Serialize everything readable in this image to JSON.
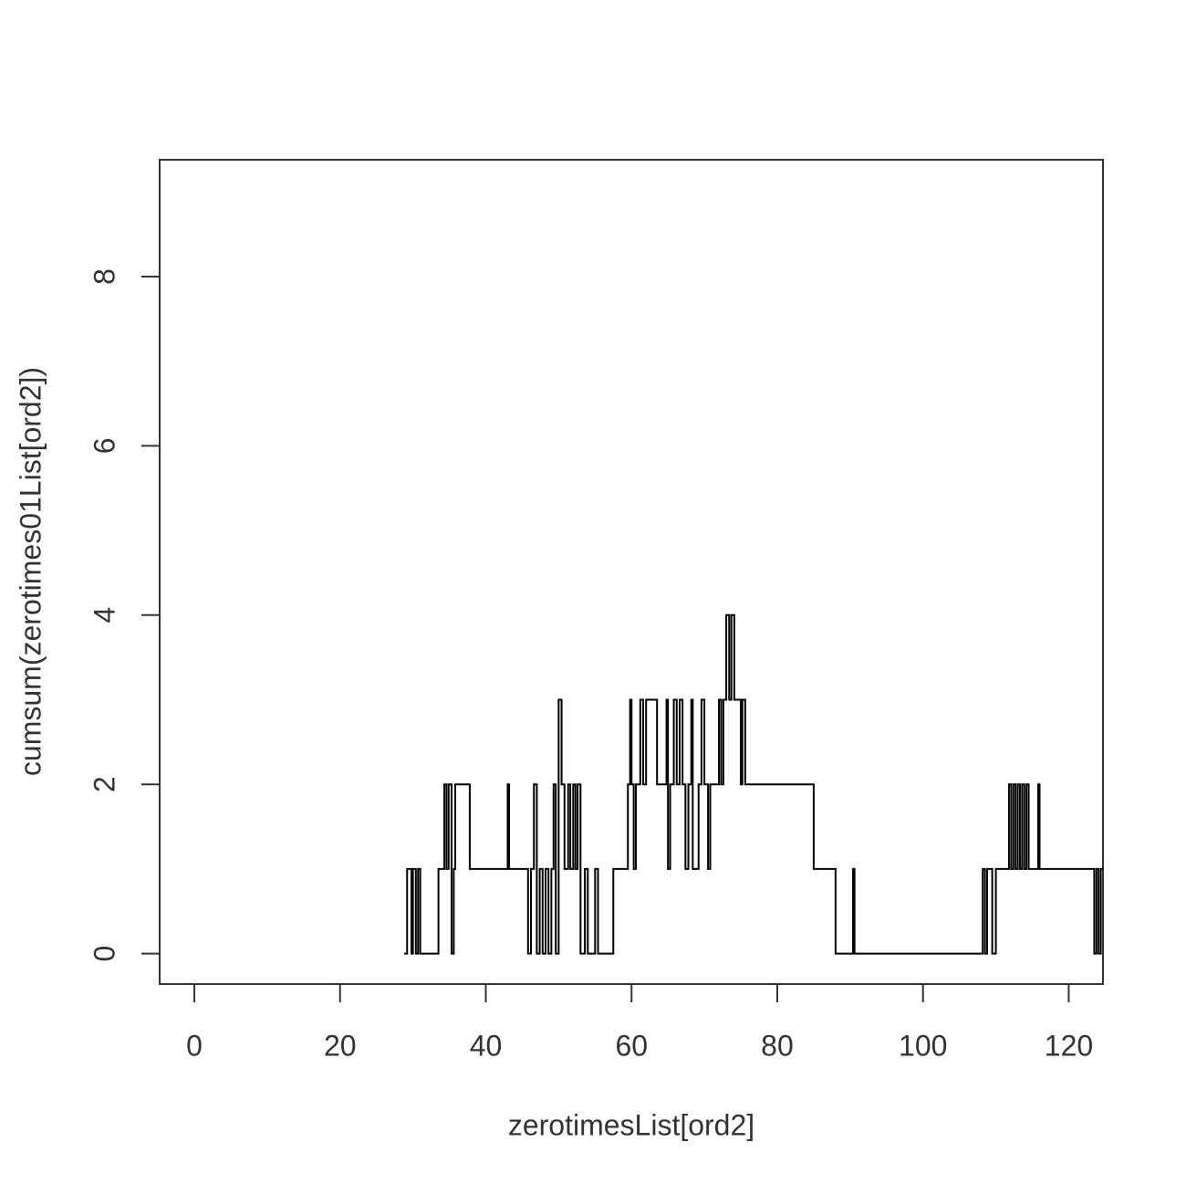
{
  "chart_data": {
    "type": "step",
    "x_label": "zerotimesList[ord2]",
    "y_label": "cumsum(zerotimes01List[ord2])",
    "color": "#000000",
    "xlim": [
      -4.76,
      124.7
    ],
    "xticks": [
      0,
      20,
      40,
      60,
      80,
      100,
      120
    ],
    "ylim": [
      -0.36,
      9.38
    ],
    "yticks": [
      0,
      2,
      4,
      6,
      8
    ],
    "x": [
      28.8,
      29.2,
      29.8,
      30.0,
      30.4,
      30.7,
      31.0,
      33.5,
      34.3,
      34.6,
      34.9,
      35.3,
      35.6,
      35.8,
      37.8,
      43.0,
      43.2,
      45.8,
      46.2,
      46.6,
      47.0,
      47.4,
      47.8,
      48.2,
      48.6,
      49.0,
      49.3,
      49.6,
      50.0,
      50.4,
      50.8,
      51.3,
      51.6,
      52.0,
      52.3,
      52.6,
      53.0,
      53.6,
      54.0,
      55.0,
      55.4,
      57.5,
      59.5,
      59.8,
      60.0,
      60.3,
      60.6,
      61.2,
      61.6,
      62.0,
      63.5,
      64.8,
      65.0,
      65.3,
      65.8,
      66.2,
      66.6,
      67.0,
      67.4,
      67.8,
      68.2,
      68.4,
      69.2,
      69.6,
      70.0,
      70.5,
      70.8,
      72.0,
      72.3,
      72.6,
      73.0,
      73.4,
      73.7,
      74.1,
      75.0,
      75.2,
      75.6,
      85.0,
      88.0,
      90.4,
      90.6,
      108.2,
      108.5,
      108.8,
      109.5,
      110.0,
      111.8,
      112.1,
      112.4,
      112.7,
      113.0,
      113.3,
      113.6,
      113.9,
      114.2,
      114.5,
      114.8,
      115.8,
      116.0,
      123.5,
      123.8,
      124.1,
      124.4
    ],
    "values": [
      0,
      1,
      0,
      1,
      0,
      1,
      0,
      1,
      2,
      1,
      2,
      0,
      1,
      2,
      1,
      2,
      1,
      0,
      1,
      2,
      0,
      1,
      0,
      1,
      0,
      1,
      2,
      0,
      3,
      2,
      1,
      2,
      1,
      2,
      1,
      2,
      0,
      1,
      0,
      1,
      0,
      1,
      2,
      3,
      2,
      1,
      2,
      3,
      2,
      3,
      2,
      3,
      1,
      2,
      3,
      2,
      3,
      2,
      1,
      2,
      3,
      1,
      2,
      3,
      2,
      1,
      2,
      3,
      2,
      3,
      4,
      3,
      4,
      3,
      2,
      3,
      2,
      1,
      0,
      1,
      0,
      1,
      0,
      1,
      0,
      1,
      2,
      1,
      2,
      1,
      2,
      1,
      2,
      1,
      2,
      1,
      1,
      2,
      1,
      0,
      1,
      0,
      1
    ]
  }
}
